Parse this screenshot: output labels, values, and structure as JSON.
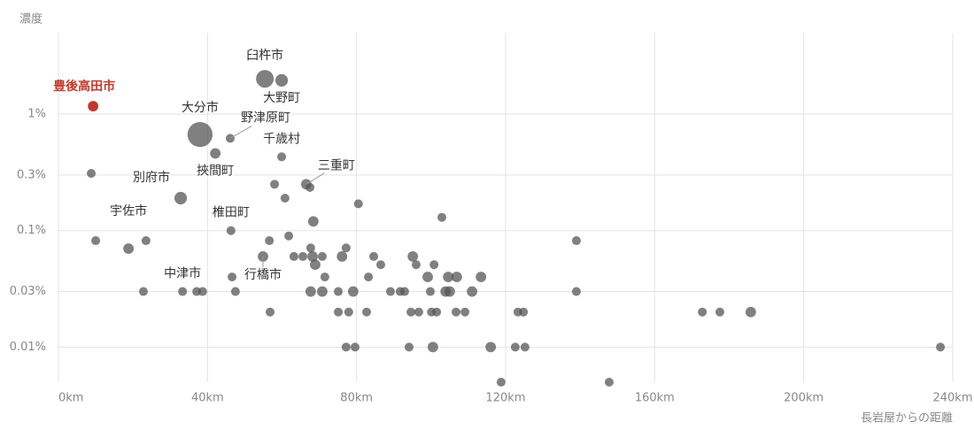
{
  "chart_data": {
    "type": "scatter",
    "y_label": "濃度",
    "x_label": "長岩屋からの距離",
    "xlim": [
      0,
      240
    ],
    "ylim": [
      0.005,
      5
    ],
    "log_y": true,
    "grid": true,
    "xticks": [
      {
        "value": 0,
        "label": "0km"
      },
      {
        "value": 40,
        "label": "40km"
      },
      {
        "value": 80,
        "label": "80km"
      },
      {
        "value": 120,
        "label": "120km"
      },
      {
        "value": 160,
        "label": "160km"
      },
      {
        "value": 200,
        "label": "200km"
      },
      {
        "value": 240,
        "label": "240km"
      }
    ],
    "yticks": [
      {
        "value": 0.01,
        "label": "0.01%"
      },
      {
        "value": 0.03,
        "label": "0.03%"
      },
      {
        "value": 0.1,
        "label": "0.1%"
      },
      {
        "value": 0.3,
        "label": "0.3%"
      },
      {
        "value": 1,
        "label": "1%"
      }
    ],
    "series": [
      {
        "color": "#555555",
        "x": [
          55.4,
          59.9,
          38.0,
          46.1,
          59.9,
          42.1,
          66.5,
          67.5,
          32.8,
          18.8,
          46.3,
          33.3,
          54.9,
          8.8,
          10.0,
          23.5,
          22.8,
          37.1,
          38.7,
          46.6,
          47.5,
          56.6,
          56.8,
          58.0,
          60.8,
          61.8,
          63.2,
          65.6,
          67.7,
          68.4,
          68.2,
          68.9,
          67.7,
          70.8,
          70.8,
          71.5,
          75.1,
          75.1,
          76.1,
          77.2,
          77.9,
          77.2,
          79.1,
          79.6,
          80.5,
          82.7,
          83.2,
          84.6,
          86.5,
          89.1,
          91.7,
          92.9,
          94.1,
          94.6,
          95.1,
          96.0,
          96.7,
          99.1,
          99.8,
          100.1,
          100.5,
          100.8,
          101.5,
          102.9,
          103.9,
          104.6,
          105.0,
          106.7,
          106.9,
          109.1,
          111.0,
          113.4,
          116.0,
          118.8,
          122.6,
          123.3,
          124.8,
          125.2,
          139.0,
          139.0,
          147.8,
          172.8,
          177.5,
          185.8,
          236.7
        ],
        "values": [
          2.01,
          1.95,
          0.668,
          0.62,
          0.43,
          0.46,
          0.25,
          0.235,
          0.19,
          0.07,
          0.1,
          0.03,
          0.06,
          0.31,
          0.082,
          0.082,
          0.03,
          0.03,
          0.03,
          0.04,
          0.03,
          0.082,
          0.02,
          0.25,
          0.19,
          0.09,
          0.06,
          0.06,
          0.071,
          0.12,
          0.06,
          0.051,
          0.03,
          0.06,
          0.03,
          0.04,
          0.03,
          0.02,
          0.06,
          0.071,
          0.02,
          0.01,
          0.03,
          0.01,
          0.17,
          0.02,
          0.04,
          0.06,
          0.051,
          0.03,
          0.03,
          0.03,
          0.01,
          0.02,
          0.06,
          0.051,
          0.02,
          0.04,
          0.03,
          0.02,
          0.01,
          0.051,
          0.02,
          0.13,
          0.03,
          0.04,
          0.03,
          0.02,
          0.04,
          0.02,
          0.03,
          0.04,
          0.01,
          0.005,
          0.01,
          0.02,
          0.02,
          0.01,
          0.082,
          0.03,
          0.005,
          0.02,
          0.02,
          0.02,
          0.01
        ],
        "sizes": [
          4,
          2,
          8,
          1,
          1,
          1.4,
          1.4,
          1,
          2,
          1.4,
          1,
          1,
          1.4,
          1,
          1,
          1,
          1,
          1,
          1,
          1,
          1,
          1,
          1,
          1,
          1,
          1,
          1,
          1,
          1,
          1.4,
          1.4,
          1.4,
          1.4,
          1,
          1.4,
          1,
          1,
          1,
          1.4,
          1,
          1,
          1,
          1.4,
          1,
          1,
          1,
          1,
          1,
          1,
          1,
          1,
          1,
          1,
          1,
          1.4,
          1,
          1,
          1.4,
          1,
          1,
          1.4,
          1,
          1,
          1,
          1.4,
          1.4,
          1.4,
          1,
          1.4,
          1,
          1.4,
          1.4,
          1.4,
          1,
          1,
          1,
          1,
          1,
          1,
          1,
          1,
          1,
          1,
          1.4,
          1
        ]
      },
      {
        "color": "#c0392b",
        "x": [
          9.3
        ],
        "values": [
          1.17
        ],
        "sizes": [
          1.4
        ]
      }
    ],
    "annotations": [
      {
        "text": "臼杵市",
        "x": 55.4,
        "y": 2.01
      },
      {
        "text": "大野町",
        "x": 59.9,
        "y": 1.95
      },
      {
        "text": "豊後高田市",
        "x": 9.3,
        "y": 1.17,
        "color": "#c0392b"
      },
      {
        "text": "大分市",
        "x": 38.0,
        "y": 0.668
      },
      {
        "text": "野津原町",
        "x": 46.1,
        "y": 0.62
      },
      {
        "text": "千歳村",
        "x": 59.9,
        "y": 0.43
      },
      {
        "text": "挾間町",
        "x": 42.1,
        "y": 0.46
      },
      {
        "text": "三重町",
        "x": 66.5,
        "y": 0.25
      },
      {
        "text": "別府市",
        "x": 32.8,
        "y": 0.19
      },
      {
        "text": "宇佐市",
        "x": 18.8,
        "y": 0.07
      },
      {
        "text": "椎田町",
        "x": 46.3,
        "y": 0.1
      },
      {
        "text": "中津市",
        "x": 33.3,
        "y": 0.03
      },
      {
        "text": "行橋市",
        "x": 54.9,
        "y": 0.06
      }
    ]
  }
}
